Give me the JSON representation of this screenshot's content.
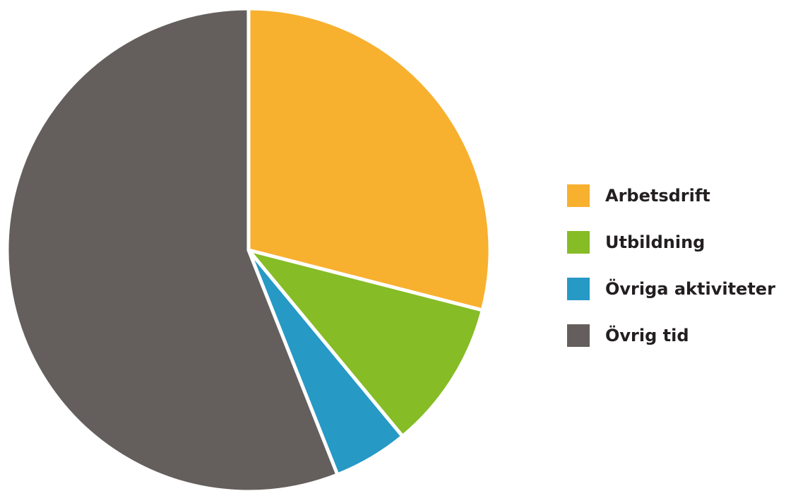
{
  "chart_data": {
    "type": "pie",
    "title": "",
    "start_angle_deg": 0,
    "direction": "clockwise",
    "legend_position": "right",
    "slices": [
      {
        "label": "Arbetsdrift",
        "value": 29,
        "color": "#f8b02f"
      },
      {
        "label": "Utbildning",
        "value": 10,
        "color": "#86bc25"
      },
      {
        "label": "Övriga aktiviteter",
        "value": 5,
        "color": "#2699c5"
      },
      {
        "label": "Övrig tid",
        "value": 56,
        "color": "#645f5d"
      }
    ]
  }
}
